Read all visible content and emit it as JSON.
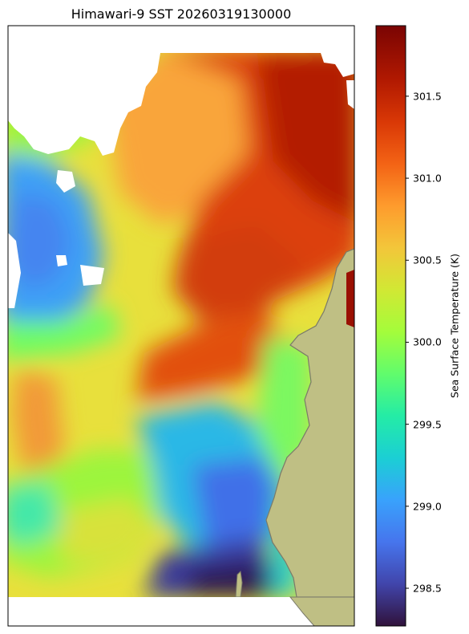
{
  "title": "Himawari-9 SST 20260319130000",
  "colorbar": {
    "label": "Sea Surface Temperature (K)",
    "min": 298.27,
    "max": 301.93,
    "colormap": "turbo",
    "ticks": [
      "298.5",
      "299.0",
      "299.5",
      "300.0",
      "300.5",
      "301.0",
      "301.5"
    ],
    "tick_values": [
      298.5,
      299.0,
      299.5,
      300.0,
      300.5,
      301.0,
      301.5
    ]
  },
  "colors": {
    "land": "#bfbf84",
    "coastline": "#7a7a6a",
    "nodata": "#ffffff"
  }
}
